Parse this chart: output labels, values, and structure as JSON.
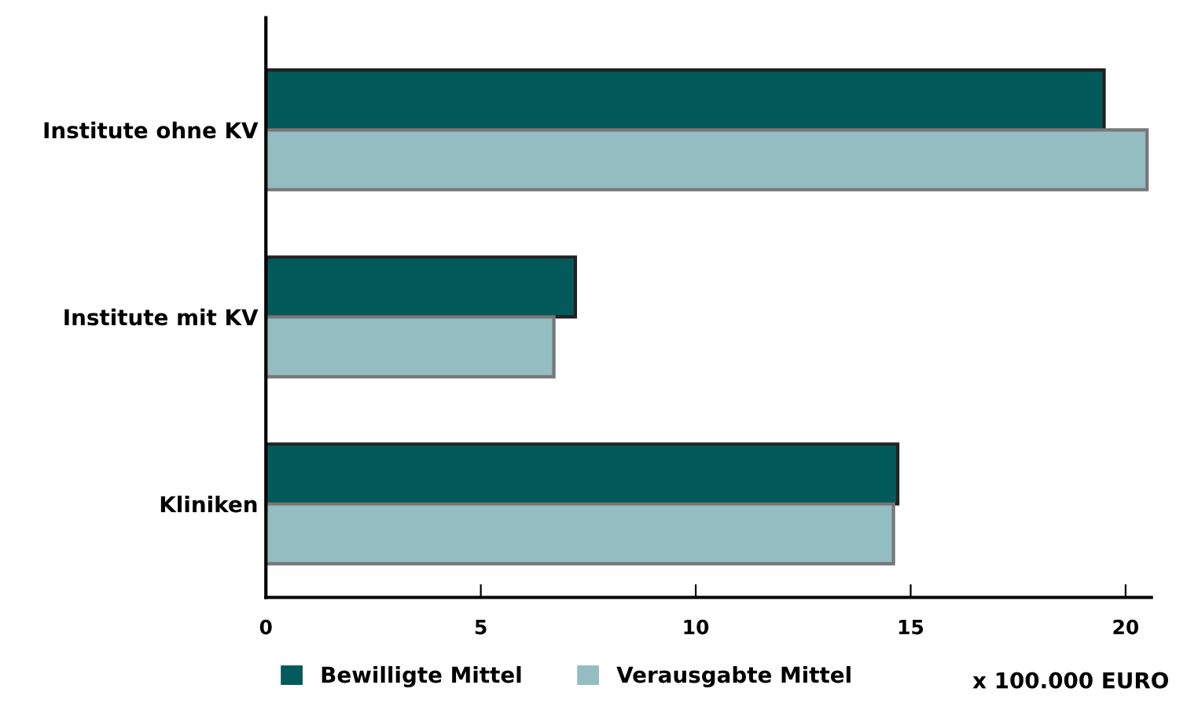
{
  "chart_data": {
    "type": "bar",
    "orientation": "horizontal",
    "categories": [
      "Institute ohne KV",
      "Institute mit KV",
      "Kliniken"
    ],
    "series": [
      {
        "name": "Bewilligte Mittel",
        "color": "#035a5a",
        "values": [
          19.5,
          7.2,
          14.7
        ]
      },
      {
        "name": "Verausgabte Mittel",
        "color": "#93bdc0",
        "values": [
          20.5,
          6.7,
          14.6
        ]
      }
    ],
    "xlim": [
      0,
      20.6
    ],
    "xticks": [
      0,
      5,
      10,
      15,
      20
    ],
    "xlabel": "x 100.000 EURO",
    "grid": false,
    "legend": "bottom"
  }
}
